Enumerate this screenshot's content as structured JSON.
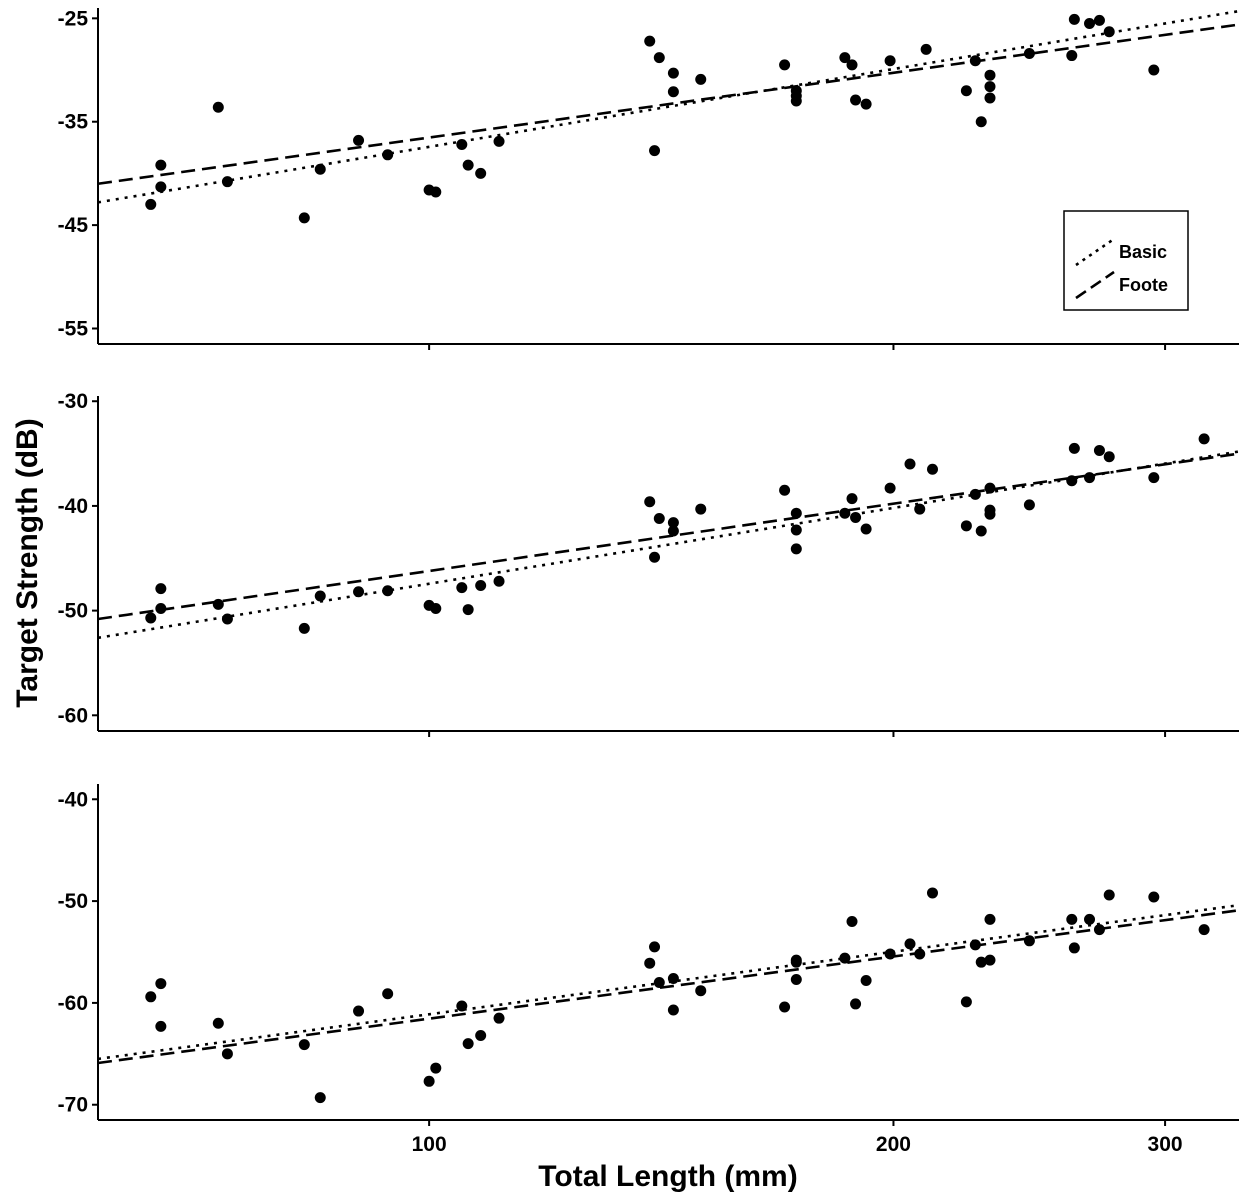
{
  "chart_data": {
    "type": "scatter",
    "x_scale": "log",
    "xlim": [
      61,
      335
    ],
    "x_ticks": [
      100,
      200,
      300
    ],
    "x_tick_labels": [
      "100",
      "200",
      "300"
    ],
    "xlabel": "Total Length (mm)",
    "ylabel": "Target Strength (dB)",
    "grid": false,
    "legend": {
      "placement": "top-right of first panel",
      "entries": [
        {
          "label": "Basic",
          "style": "dotted"
        },
        {
          "label": "Foote",
          "style": "dashed"
        }
      ]
    },
    "panels": [
      {
        "ylim": [
          -56.5,
          -24
        ],
        "y_ticks": [
          -25,
          -35,
          -45,
          -55
        ],
        "y_tick_labels": [
          "-25",
          "-35",
          "-45",
          "-55"
        ],
        "show_legend": true,
        "points": [
          [
            66,
            -43.0
          ],
          [
            67,
            -41.3
          ],
          [
            67,
            -39.2
          ],
          [
            73,
            -33.6
          ],
          [
            74,
            -40.8
          ],
          [
            83,
            -44.3
          ],
          [
            85,
            -39.6
          ],
          [
            90,
            -36.8
          ],
          [
            94,
            -38.2
          ],
          [
            100,
            -41.6
          ],
          [
            101,
            -41.8
          ],
          [
            105,
            -37.2
          ],
          [
            106,
            -39.2
          ],
          [
            108,
            -40.0
          ],
          [
            111,
            -36.9
          ],
          [
            139,
            -27.2
          ],
          [
            140,
            -37.8
          ],
          [
            141,
            -28.8
          ],
          [
            144,
            -30.3
          ],
          [
            144,
            -32.1
          ],
          [
            150,
            -30.9
          ],
          [
            170,
            -29.5
          ],
          [
            173,
            -32.0
          ],
          [
            173,
            -33.0
          ],
          [
            173,
            -32.5
          ],
          [
            186,
            -28.8
          ],
          [
            188,
            -29.5
          ],
          [
            189,
            -32.9
          ],
          [
            192,
            -33.3
          ],
          [
            199,
            -29.1
          ],
          [
            210,
            -28.0
          ],
          [
            223,
            -32.0
          ],
          [
            226,
            -29.1
          ],
          [
            228,
            -35.0
          ],
          [
            231,
            -32.7
          ],
          [
            231,
            -30.5
          ],
          [
            231,
            -31.6
          ],
          [
            245,
            -28.4
          ],
          [
            261,
            -28.6
          ],
          [
            262,
            -25.1
          ],
          [
            268,
            -25.5
          ],
          [
            272,
            -25.2
          ],
          [
            276,
            -26.3
          ],
          [
            295,
            -30.0
          ]
        ],
        "lines": [
          {
            "name": "Basic",
            "style": "dotted",
            "start": [
              61,
              -42.8
            ],
            "end": [
              335,
              -24.3
            ]
          },
          {
            "name": "Foote",
            "style": "dashed",
            "start": [
              61,
              -41.0
            ],
            "end": [
              335,
              -25.6
            ]
          }
        ]
      },
      {
        "ylim": [
          -61.5,
          -29.5
        ],
        "y_ticks": [
          -30,
          -40,
          -50,
          -60
        ],
        "y_tick_labels": [
          "-30",
          "-40",
          "-50",
          "-60"
        ],
        "show_legend": false,
        "points": [
          [
            66,
            -50.7
          ],
          [
            67,
            -49.8
          ],
          [
            67,
            -47.9
          ],
          [
            73,
            -49.4
          ],
          [
            74,
            -50.8
          ],
          [
            83,
            -51.7
          ],
          [
            85,
            -48.6
          ],
          [
            90,
            -48.2
          ],
          [
            94,
            -48.1
          ],
          [
            100,
            -49.5
          ],
          [
            101,
            -49.8
          ],
          [
            105,
            -47.8
          ],
          [
            106,
            -49.9
          ],
          [
            108,
            -47.6
          ],
          [
            111,
            -47.2
          ],
          [
            139,
            -39.6
          ],
          [
            140,
            -44.9
          ],
          [
            141,
            -41.2
          ],
          [
            144,
            -41.6
          ],
          [
            144,
            -42.4
          ],
          [
            150,
            -40.3
          ],
          [
            170,
            -38.5
          ],
          [
            173,
            -40.7
          ],
          [
            173,
            -42.3
          ],
          [
            173,
            -44.1
          ],
          [
            186,
            -40.7
          ],
          [
            188,
            -39.3
          ],
          [
            189,
            -41.1
          ],
          [
            192,
            -42.2
          ],
          [
            199,
            -38.3
          ],
          [
            205,
            -36.0
          ],
          [
            208,
            -40.3
          ],
          [
            212,
            -36.5
          ],
          [
            223,
            -41.9
          ],
          [
            226,
            -38.9
          ],
          [
            228,
            -42.4
          ],
          [
            231,
            -40.8
          ],
          [
            231,
            -40.4
          ],
          [
            231,
            -38.3
          ],
          [
            245,
            -39.9
          ],
          [
            261,
            -37.6
          ],
          [
            262,
            -34.5
          ],
          [
            268,
            -37.3
          ],
          [
            272,
            -34.7
          ],
          [
            276,
            -35.3
          ],
          [
            295,
            -37.3
          ],
          [
            318,
            -33.6
          ]
        ],
        "lines": [
          {
            "name": "Basic",
            "style": "dotted",
            "start": [
              61,
              -52.6
            ],
            "end": [
              335,
              -34.8
            ]
          },
          {
            "name": "Foote",
            "style": "dashed",
            "start": [
              61,
              -50.8
            ],
            "end": [
              335,
              -35.0
            ]
          }
        ]
      },
      {
        "ylim": [
          -71.5,
          -38.5
        ],
        "y_ticks": [
          -40,
          -50,
          -60,
          -70
        ],
        "y_tick_labels": [
          "-40",
          "-50",
          "-60",
          "-70"
        ],
        "show_legend": false,
        "points": [
          [
            66,
            -59.4
          ],
          [
            67,
            -62.3
          ],
          [
            67,
            -58.1
          ],
          [
            73,
            -62.0
          ],
          [
            74,
            -65.0
          ],
          [
            83,
            -64.1
          ],
          [
            85,
            -69.3
          ],
          [
            90,
            -60.8
          ],
          [
            94,
            -59.1
          ],
          [
            100,
            -67.7
          ],
          [
            101,
            -66.4
          ],
          [
            105,
            -60.3
          ],
          [
            106,
            -64.0
          ],
          [
            108,
            -63.2
          ],
          [
            111,
            -61.5
          ],
          [
            139,
            -56.1
          ],
          [
            140,
            -54.5
          ],
          [
            141,
            -58.0
          ],
          [
            144,
            -57.6
          ],
          [
            144,
            -60.7
          ],
          [
            150,
            -58.8
          ],
          [
            170,
            -60.4
          ],
          [
            173,
            -55.8
          ],
          [
            173,
            -57.7
          ],
          [
            173,
            -56.0
          ],
          [
            186,
            -55.6
          ],
          [
            188,
            -52.0
          ],
          [
            189,
            -60.1
          ],
          [
            192,
            -57.8
          ],
          [
            199,
            -55.2
          ],
          [
            205,
            -54.2
          ],
          [
            208,
            -55.2
          ],
          [
            212,
            -49.2
          ],
          [
            223,
            -59.9
          ],
          [
            226,
            -54.3
          ],
          [
            228,
            -56.0
          ],
          [
            231,
            -55.8
          ],
          [
            231,
            -51.8
          ],
          [
            245,
            -53.9
          ],
          [
            261,
            -51.8
          ],
          [
            262,
            -54.6
          ],
          [
            268,
            -51.8
          ],
          [
            272,
            -52.8
          ],
          [
            276,
            -49.4
          ],
          [
            295,
            -49.6
          ],
          [
            318,
            -52.8
          ]
        ],
        "lines": [
          {
            "name": "Basic",
            "style": "dotted",
            "start": [
              61,
              -65.5
            ],
            "end": [
              335,
              -50.4
            ]
          },
          {
            "name": "Foote",
            "style": "dashed",
            "start": [
              61,
              -65.9
            ],
            "end": [
              335,
              -50.9
            ]
          }
        ]
      }
    ]
  }
}
